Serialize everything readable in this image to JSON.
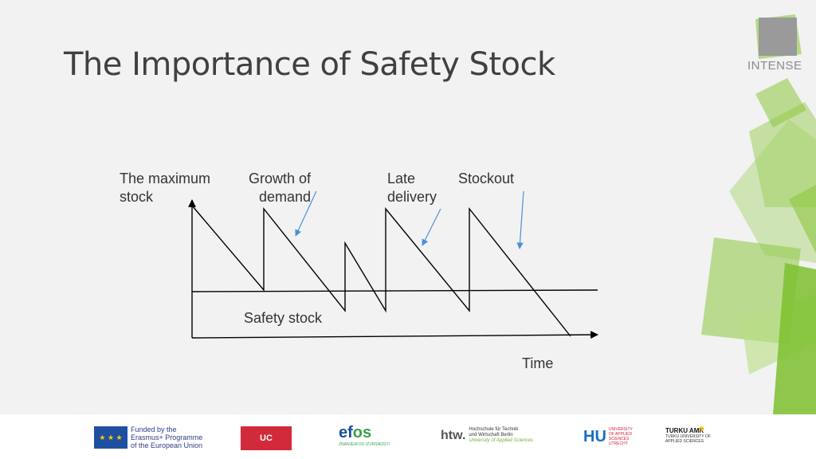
{
  "slide": {
    "title": "The Importance of Safety Stock",
    "brand": "INTENSE",
    "accent_color": "#8dc63f"
  },
  "diagram": {
    "labels": {
      "max_stock_l1": "The maximum",
      "max_stock_l2": "stock",
      "growth_l1": "Growth of",
      "growth_l2": "demand",
      "late_l1": "Late",
      "late_l2": "delivery",
      "stockout": "Stockout",
      "safety_stock": "Safety stock",
      "time": "Time"
    },
    "line_color": "#000000",
    "arrow_color": "#4a90d9"
  },
  "footer": {
    "eu_text_l1": "Funded by the",
    "eu_text_l2": "Erasmus+ Programme",
    "eu_text_l3": "of the European Union",
    "uc_label": "UC",
    "efos_prefix": "ef",
    "efos_suffix": "os",
    "efos_tagline": "ZNANJEM DO IZVRSNOSTI",
    "htw_mark": "htw.",
    "htw_l1": "Hochschule für Technik",
    "htw_l2": "und Wirtschaft Berlin",
    "htw_l3": "University of Applied Sciences",
    "hu_mark": "HU",
    "hu_l1": "UNIVERSITY",
    "hu_l2": "OF APPLIED",
    "hu_l3": "SCIENCES",
    "hu_l4": "UTRECHT",
    "turku_l1": "TURKU AMK",
    "turku_l2": "TURKU UNIVERSITY OF",
    "turku_l3": "APPLIED SCIENCES"
  }
}
